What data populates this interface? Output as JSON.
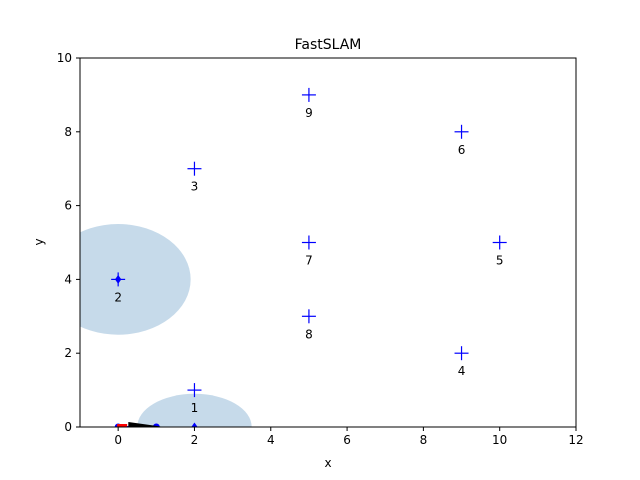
{
  "chart_data": {
    "type": "scatter",
    "title": "FastSLAM",
    "xlabel": "x",
    "ylabel": "y",
    "xlim": [
      -1,
      12
    ],
    "ylim": [
      0,
      10
    ],
    "xticks": [
      0,
      2,
      4,
      6,
      8,
      10,
      12
    ],
    "yticks": [
      0,
      2,
      4,
      6,
      8,
      10
    ],
    "grid": false,
    "landmarks": [
      {
        "label": "1",
        "x": 2,
        "y": 1
      },
      {
        "label": "2",
        "x": 0,
        "y": 4
      },
      {
        "label": "3",
        "x": 2,
        "y": 7
      },
      {
        "label": "4",
        "x": 9,
        "y": 2
      },
      {
        "label": "5",
        "x": 10,
        "y": 5
      },
      {
        "label": "6",
        "x": 9,
        "y": 8
      },
      {
        "label": "7",
        "x": 5,
        "y": 5
      },
      {
        "label": "8",
        "x": 5,
        "y": 3
      },
      {
        "label": "9",
        "x": 5,
        "y": 9
      }
    ],
    "landmark_marker": "plus",
    "landmark_color": "#0000ff",
    "estimated_landmarks": [
      {
        "x": 0,
        "y": 4
      },
      {
        "x": 2,
        "y": 0
      }
    ],
    "uncertainty_ellipses": [
      {
        "cx": 0,
        "cy": 4,
        "rx": 1.9,
        "ry": 1.5
      },
      {
        "cx": 2,
        "cy": 0,
        "rx": 1.5,
        "ry": 0.9
      }
    ],
    "ellipse_color": "#bcd4e6",
    "robot_path": [
      {
        "x": 0,
        "y": 0
      },
      {
        "x": 1,
        "y": 0
      }
    ],
    "path_color": "#0000ff",
    "robot_pose": {
      "x": 1,
      "y": 0,
      "heading_deg": 0
    },
    "particles_color": "#ff0000",
    "robot_color": "#000000"
  }
}
